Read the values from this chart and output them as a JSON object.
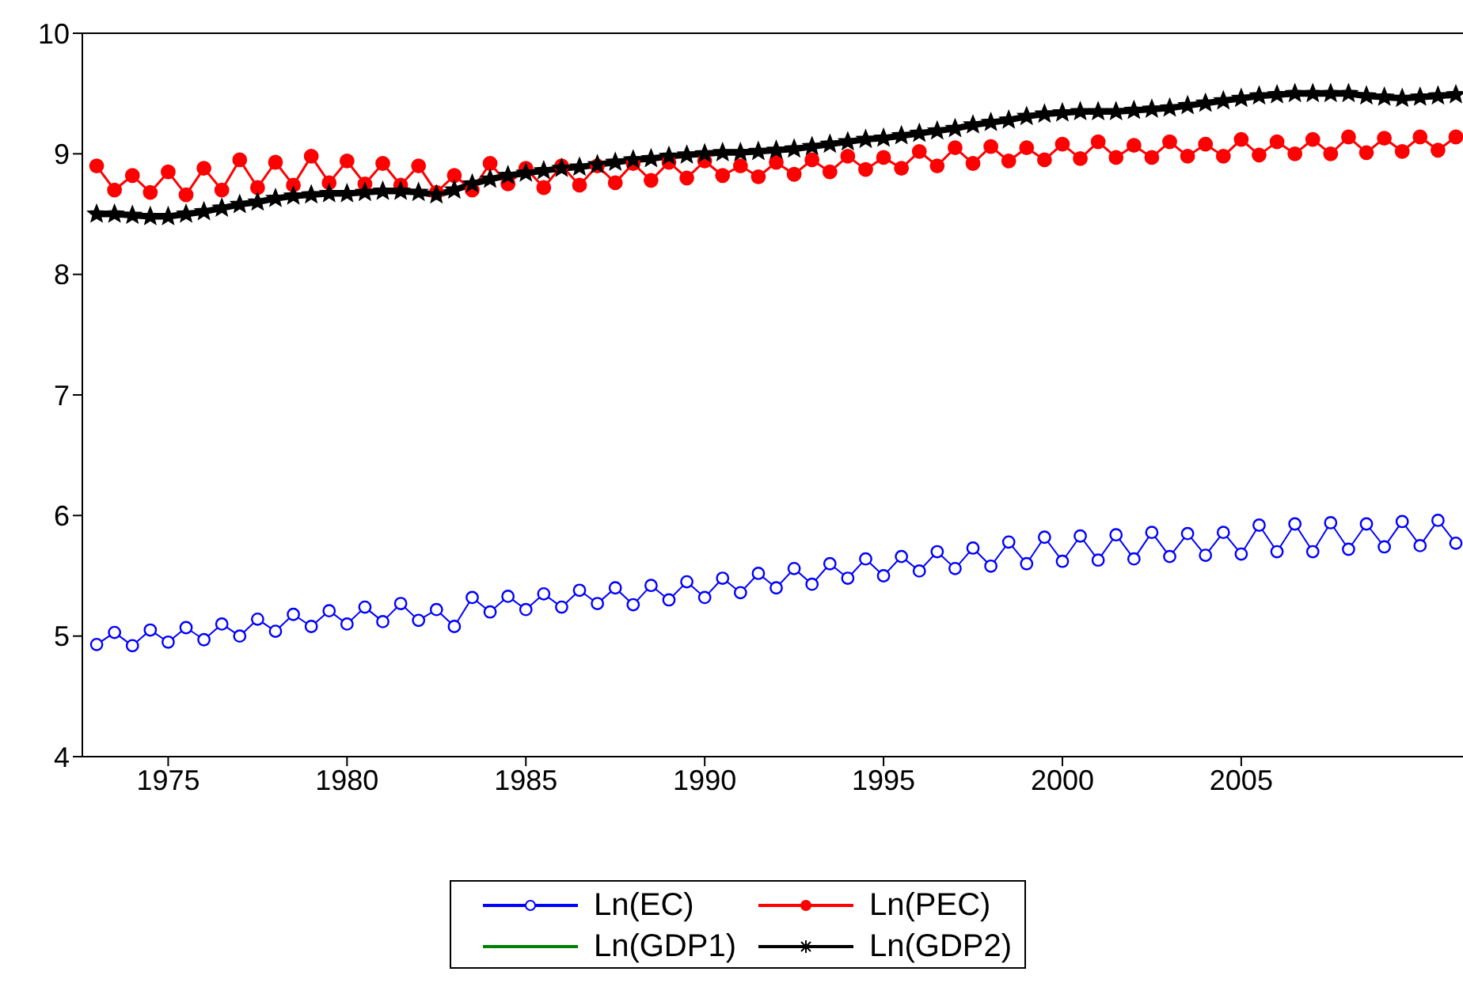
{
  "chart_data": {
    "type": "line",
    "x": [
      1973,
      1973.5,
      1974,
      1974.5,
      1975,
      1975.5,
      1976,
      1976.5,
      1977,
      1977.5,
      1978,
      1978.5,
      1979,
      1979.5,
      1980,
      1980.5,
      1981,
      1981.5,
      1982,
      1982.5,
      1983,
      1983.5,
      1984,
      1984.5,
      1985,
      1985.5,
      1986,
      1986.5,
      1987,
      1987.5,
      1988,
      1988.5,
      1989,
      1989.5,
      1990,
      1990.5,
      1991,
      1991.5,
      1992,
      1992.5,
      1993,
      1993.5,
      1994,
      1994.5,
      1995,
      1995.5,
      1996,
      1996.5,
      1997,
      1997.5,
      1998,
      1998.5,
      1999,
      1999.5,
      2000,
      2000.5,
      2001,
      2001.5,
      2002,
      2002.5,
      2003,
      2003.5,
      2004,
      2004.5,
      2005,
      2005.5,
      2006,
      2006.5,
      2007,
      2007.5,
      2008,
      2008.5,
      2009,
      2009.5,
      2010,
      2010.5,
      2011
    ],
    "series": [
      {
        "name": "Ln(EC)",
        "color": "#0000ff",
        "marker": "circle",
        "values": [
          4.93,
          5.03,
          4.92,
          5.05,
          4.95,
          5.07,
          4.97,
          5.1,
          5.0,
          5.14,
          5.04,
          5.18,
          5.08,
          5.21,
          5.1,
          5.24,
          5.12,
          5.27,
          5.13,
          5.22,
          5.08,
          5.32,
          5.2,
          5.33,
          5.22,
          5.35,
          5.24,
          5.38,
          5.27,
          5.4,
          5.26,
          5.42,
          5.3,
          5.45,
          5.32,
          5.48,
          5.36,
          5.52,
          5.4,
          5.56,
          5.43,
          5.6,
          5.48,
          5.64,
          5.5,
          5.66,
          5.54,
          5.7,
          5.56,
          5.73,
          5.58,
          5.78,
          5.6,
          5.82,
          5.62,
          5.83,
          5.63,
          5.84,
          5.64,
          5.86,
          5.66,
          5.85,
          5.67,
          5.86,
          5.68,
          5.92,
          5.7,
          5.93,
          5.7,
          5.94,
          5.72,
          5.93,
          5.74,
          5.95,
          5.75,
          5.96,
          5.77
        ]
      },
      {
        "name": "Ln(PEC)",
        "color": "#ff0000",
        "marker": "dot",
        "values": [
          8.9,
          8.7,
          8.82,
          8.68,
          8.85,
          8.66,
          8.88,
          8.7,
          8.95,
          8.72,
          8.93,
          8.74,
          8.98,
          8.76,
          8.94,
          8.75,
          8.92,
          8.74,
          8.9,
          8.68,
          8.82,
          8.7,
          8.92,
          8.75,
          8.88,
          8.72,
          8.9,
          8.74,
          8.9,
          8.76,
          8.92,
          8.78,
          8.93,
          8.8,
          8.94,
          8.82,
          8.9,
          8.81,
          8.93,
          8.83,
          8.95,
          8.85,
          8.98,
          8.87,
          8.97,
          8.88,
          9.02,
          8.9,
          9.05,
          8.92,
          9.06,
          8.94,
          9.05,
          8.95,
          9.08,
          8.96,
          9.1,
          8.97,
          9.07,
          8.97,
          9.1,
          8.98,
          9.08,
          8.98,
          9.12,
          8.99,
          9.1,
          9.0,
          9.12,
          9.0,
          9.14,
          9.01,
          9.13,
          9.02,
          9.14,
          9.03,
          9.14
        ]
      },
      {
        "name": "Ln(GDP1)",
        "color": "#008000",
        "marker": "none",
        "values": [
          null,
          null,
          null,
          null,
          null,
          null,
          null,
          null,
          null,
          null,
          null,
          null,
          null,
          null,
          null,
          null,
          null,
          null,
          null,
          null,
          null,
          null,
          null,
          null,
          null,
          null,
          null,
          null,
          null,
          null,
          null,
          null,
          null,
          null,
          null,
          null,
          null,
          null,
          null,
          null,
          null,
          null,
          null,
          null,
          null,
          null,
          null,
          null,
          null,
          null,
          null,
          null,
          null,
          null,
          null,
          null,
          null,
          null,
          null,
          null,
          null,
          null,
          null,
          null,
          null,
          null,
          null,
          null,
          null,
          null,
          null,
          null,
          null,
          null,
          null,
          null,
          null
        ]
      },
      {
        "name": "Ln(GDP2)",
        "color": "#000000",
        "marker": "star",
        "values": [
          8.5,
          8.5,
          8.49,
          8.48,
          8.48,
          8.5,
          8.52,
          8.55,
          8.58,
          8.6,
          8.63,
          8.65,
          8.66,
          8.67,
          8.67,
          8.68,
          8.69,
          8.69,
          8.68,
          8.66,
          8.7,
          8.75,
          8.79,
          8.82,
          8.84,
          8.86,
          8.88,
          8.89,
          8.91,
          8.93,
          8.95,
          8.96,
          8.98,
          8.99,
          9.0,
          9.01,
          9.01,
          9.02,
          9.03,
          9.04,
          9.06,
          9.08,
          9.1,
          9.12,
          9.13,
          9.15,
          9.17,
          9.19,
          9.21,
          9.24,
          9.26,
          9.28,
          9.31,
          9.33,
          9.34,
          9.35,
          9.35,
          9.35,
          9.36,
          9.37,
          9.38,
          9.4,
          9.42,
          9.44,
          9.46,
          9.48,
          9.49,
          9.5,
          9.5,
          9.5,
          9.5,
          9.48,
          9.47,
          9.46,
          9.47,
          9.48,
          9.49
        ]
      }
    ],
    "xlim": [
      1972.6,
      2011.2
    ],
    "xticks": [
      1975,
      1980,
      1985,
      1990,
      1995,
      2000,
      2005
    ],
    "ylim": [
      4,
      10
    ],
    "yticks": [
      4,
      5,
      6,
      7,
      8,
      9,
      10
    ],
    "grid": false,
    "legend": "bottom"
  }
}
